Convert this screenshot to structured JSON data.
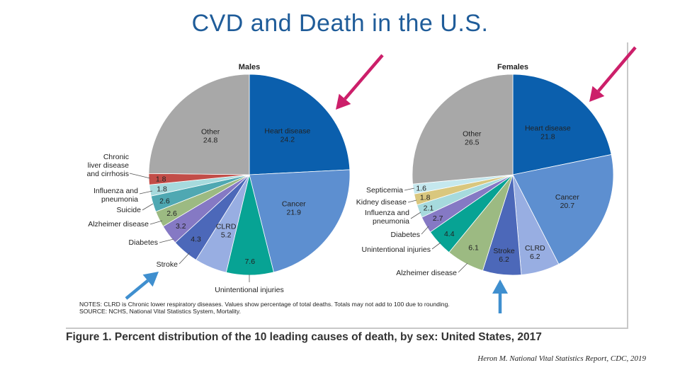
{
  "slide": {
    "title": "CVD and Death in the U.S.",
    "notes_line1": "NOTES: CLRD is Chronic lower respiratory diseases. Values show percentage of total deaths. Totals may not add to 100 due to rounding.",
    "notes_line2": "SOURCE: NCHS, National Vital Statistics System, Mortality.",
    "figure_caption": "Figure 1. Percent distribution of the 10 leading causes of death, by sex: United States, 2017",
    "citation": "Heron M. National Vital Statistics Report, CDC, 2019"
  },
  "colors": {
    "title": "#1f5c99",
    "arrow_pink": "#cc1f6a",
    "arrow_blue": "#3f8fcf"
  },
  "chart_data": [
    {
      "type": "pie",
      "title": "Males",
      "start_angle_deg": 0,
      "direction": "clockwise",
      "slices": [
        {
          "label": "Heart disease",
          "value": 24.2,
          "value_text": "24.2",
          "color": "#0b5fad"
        },
        {
          "label": "Cancer",
          "value": 21.9,
          "value_text": "21.9",
          "color": "#5d8fd0"
        },
        {
          "label": "Unintentional injuries",
          "value": 7.6,
          "value_text": "7.6",
          "color": "#07a394"
        },
        {
          "label": "CLRD",
          "value": 5.2,
          "value_text": "5.2",
          "color": "#98aee2"
        },
        {
          "label": "Stroke",
          "value": 4.3,
          "value_text": "4.3",
          "color": "#4c68b9"
        },
        {
          "label": "Diabetes",
          "value": 3.2,
          "value_text": "3.2",
          "color": "#8579c4"
        },
        {
          "label": "Alzheimer disease",
          "value": 2.6,
          "value_text": "2.6",
          "color": "#9cba82"
        },
        {
          "label": "Suicide",
          "value": 2.6,
          "value_text": "2.6",
          "color": "#4fa8b2"
        },
        {
          "label": "Influenza and pneumonia",
          "value": 1.8,
          "value_text": "1.8",
          "color": "#a6dadd"
        },
        {
          "label": "Chronic liver disease and cirrhosis",
          "value": 1.8,
          "value_text": "1.8",
          "color": "#c24d48"
        },
        {
          "label": "Other",
          "value": 24.8,
          "value_text": "24.8",
          "color": "#a8a8a8"
        }
      ]
    },
    {
      "type": "pie",
      "title": "Females",
      "start_angle_deg": 0,
      "direction": "clockwise",
      "slices": [
        {
          "label": "Heart disease",
          "value": 21.8,
          "value_text": "21.8",
          "color": "#0b5fad"
        },
        {
          "label": "Cancer",
          "value": 20.7,
          "value_text": "20.7",
          "color": "#5d8fd0"
        },
        {
          "label": "CLRD",
          "value": 6.2,
          "value_text": "6.2",
          "color": "#98aee2"
        },
        {
          "label": "Stroke",
          "value": 6.2,
          "value_text": "6.2",
          "color": "#4c68b9"
        },
        {
          "label": "Alzheimer disease",
          "value": 6.1,
          "value_text": "6.1",
          "color": "#9cba82"
        },
        {
          "label": "Unintentional injuries",
          "value": 4.4,
          "value_text": "4.4",
          "color": "#07a394"
        },
        {
          "label": "Diabetes",
          "value": 2.7,
          "value_text": "2.7",
          "color": "#8579c4"
        },
        {
          "label": "Influenza and pneumonia",
          "value": 2.1,
          "value_text": "2.1",
          "color": "#a6dadd"
        },
        {
          "label": "Kidney disease",
          "value": 1.8,
          "value_text": "1.8",
          "color": "#d9c77e"
        },
        {
          "label": "Septicemia",
          "value": 1.6,
          "value_text": "1.6",
          "color": "#c5e8ee"
        },
        {
          "label": "Other",
          "value": 26.5,
          "value_text": "26.5",
          "color": "#a8a8a8"
        }
      ]
    }
  ]
}
